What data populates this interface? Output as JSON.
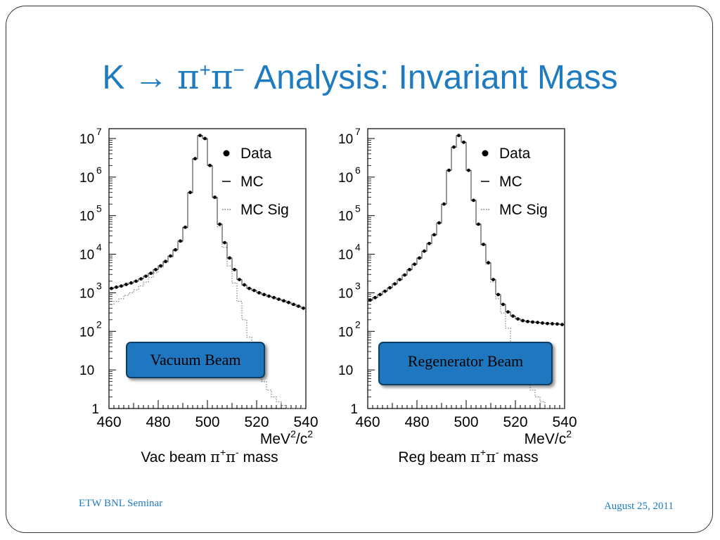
{
  "slide": {
    "title_prefix": "K → ",
    "title_pi": "π",
    "title_plus": "+",
    "title_minus": "−",
    "title_suffix": " Analysis: Invariant Mass",
    "footer_left": "ETW BNL Seminar",
    "footer_right": "August 25, 2011",
    "accent_color": "#1f7bbf",
    "label_color": "#1f78bf"
  },
  "chart_data": [
    {
      "type": "histogram",
      "y_scale": "log",
      "ylim": [
        1,
        10000000
      ],
      "xlim": [
        460,
        540
      ],
      "x_ticks": [
        "460",
        "480",
        "500",
        "520",
        "540"
      ],
      "y_ticks": [
        {
          "base": "1",
          "exp": ""
        },
        {
          "base": "10",
          "exp": ""
        },
        {
          "base": "10",
          "exp": "2"
        },
        {
          "base": "10",
          "exp": "3"
        },
        {
          "base": "10",
          "exp": "4"
        },
        {
          "base": "10",
          "exp": "5"
        },
        {
          "base": "10",
          "exp": "6"
        },
        {
          "base": "10",
          "exp": "7"
        }
      ],
      "unit_label": {
        "base": "MeV",
        "exp": "2",
        "suffix": "/c",
        "suffix_exp": "2"
      },
      "xlabel": {
        "pre": "Vac beam ",
        "pi": "π",
        "plus": "+",
        "minus": "-",
        "post": " mass"
      },
      "legend": [
        "Data",
        "MC",
        "MC Sig"
      ],
      "legend_position": "top-right",
      "box_label": "Vacuum Beam",
      "x": [
        461,
        463,
        465,
        467,
        469,
        471,
        473,
        475,
        477,
        479,
        481,
        483,
        485,
        487,
        489,
        491,
        493,
        495,
        497,
        499,
        501,
        503,
        505,
        507,
        509,
        511,
        513,
        515,
        517,
        519,
        521,
        523,
        525,
        527,
        529,
        531,
        533,
        535,
        537,
        539
      ],
      "data": [
        1300,
        1400,
        1500,
        1650,
        1800,
        2000,
        2300,
        2700,
        3200,
        4000,
        5000,
        6500,
        9000,
        13000,
        22000,
        50000,
        400000,
        3000000,
        12000000,
        10000000,
        2000000,
        300000,
        60000,
        20000,
        8000,
        4000,
        2200,
        1600,
        1300,
        1150,
        1000,
        900,
        820,
        750,
        680,
        620,
        560,
        500,
        450,
        400
      ],
      "mc_sig": [
        500,
        600,
        700,
        850,
        1000,
        1200,
        1500,
        1900,
        2500,
        3300,
        4500,
        6000,
        8500,
        12500,
        21000,
        48000,
        390000,
        2900000,
        11500000,
        9500000,
        1900000,
        280000,
        52000,
        15000,
        5000,
        1800,
        600,
        200,
        70,
        25,
        10,
        5,
        3,
        2,
        1.5,
        1.2,
        1,
        1,
        1,
        1
      ]
    },
    {
      "type": "histogram",
      "y_scale": "log",
      "ylim": [
        1,
        10000000
      ],
      "xlim": [
        460,
        540
      ],
      "x_ticks": [
        "460",
        "480",
        "500",
        "520",
        "540"
      ],
      "y_ticks": [
        {
          "base": "1",
          "exp": ""
        },
        {
          "base": "10",
          "exp": ""
        },
        {
          "base": "10",
          "exp": "2"
        },
        {
          "base": "10",
          "exp": "3"
        },
        {
          "base": "10",
          "exp": "4"
        },
        {
          "base": "10",
          "exp": "5"
        },
        {
          "base": "10",
          "exp": "6"
        },
        {
          "base": "10",
          "exp": "7"
        }
      ],
      "unit_label": {
        "base": "MeV",
        "exp": "",
        "suffix": "/c",
        "suffix_exp": "2"
      },
      "xlabel": {
        "pre": "Reg beam ",
        "pi": "π",
        "plus": "+",
        "minus": "-",
        "post": " mass"
      },
      "legend": [
        "Data",
        "MC",
        "MC Sig"
      ],
      "legend_position": "top-right",
      "box_label": "Regenerator Beam",
      "x": [
        461,
        463,
        465,
        467,
        469,
        471,
        473,
        475,
        477,
        479,
        481,
        483,
        485,
        487,
        489,
        491,
        493,
        495,
        497,
        499,
        501,
        503,
        505,
        507,
        509,
        511,
        513,
        515,
        517,
        519,
        521,
        523,
        525,
        527,
        529,
        531,
        533,
        535,
        537,
        539
      ],
      "data": [
        650,
        750,
        900,
        1100,
        1350,
        1700,
        2200,
        2900,
        4000,
        5500,
        8000,
        12000,
        19000,
        32000,
        65000,
        200000,
        1500000,
        6000000,
        12000000,
        8000000,
        1500000,
        250000,
        60000,
        18000,
        6000,
        2200,
        900,
        500,
        320,
        250,
        210,
        190,
        180,
        175,
        170,
        165,
        160,
        158,
        155,
        150
      ],
      "mc_sig": [
        640,
        740,
        890,
        1080,
        1330,
        1680,
        2180,
        2880,
        3950,
        5400,
        7900,
        11800,
        18800,
        31500,
        64000,
        198000,
        1480000,
        5900000,
        11800000,
        7900000,
        1480000,
        245000,
        58000,
        17000,
        5500,
        1900,
        700,
        300,
        120,
        50,
        20,
        10,
        5,
        3,
        2,
        1.5,
        1,
        1,
        1,
        1
      ]
    }
  ]
}
